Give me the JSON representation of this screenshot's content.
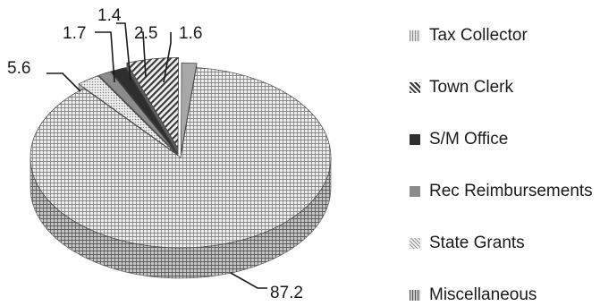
{
  "chart_data": {
    "type": "pie",
    "style": "3d-exploded",
    "legend_position": "right",
    "categories": [
      "Tax Collector",
      "Town Clerk",
      "S/M Office",
      "Rec Reimbursements",
      "State Grants",
      "Miscellaneous"
    ],
    "values": [
      1.6,
      5.6,
      1.7,
      1.4,
      2.5,
      87.2
    ],
    "data_labels": [
      "1.6",
      "5.6",
      "1.7",
      "1.4",
      "2.5",
      "87.2"
    ],
    "series_colors": [
      "#a8a8a8",
      "#d8d8d8",
      "#2e2e2e",
      "#8c8c8c",
      "#e2e2e2",
      "#6a6a6a"
    ]
  }
}
